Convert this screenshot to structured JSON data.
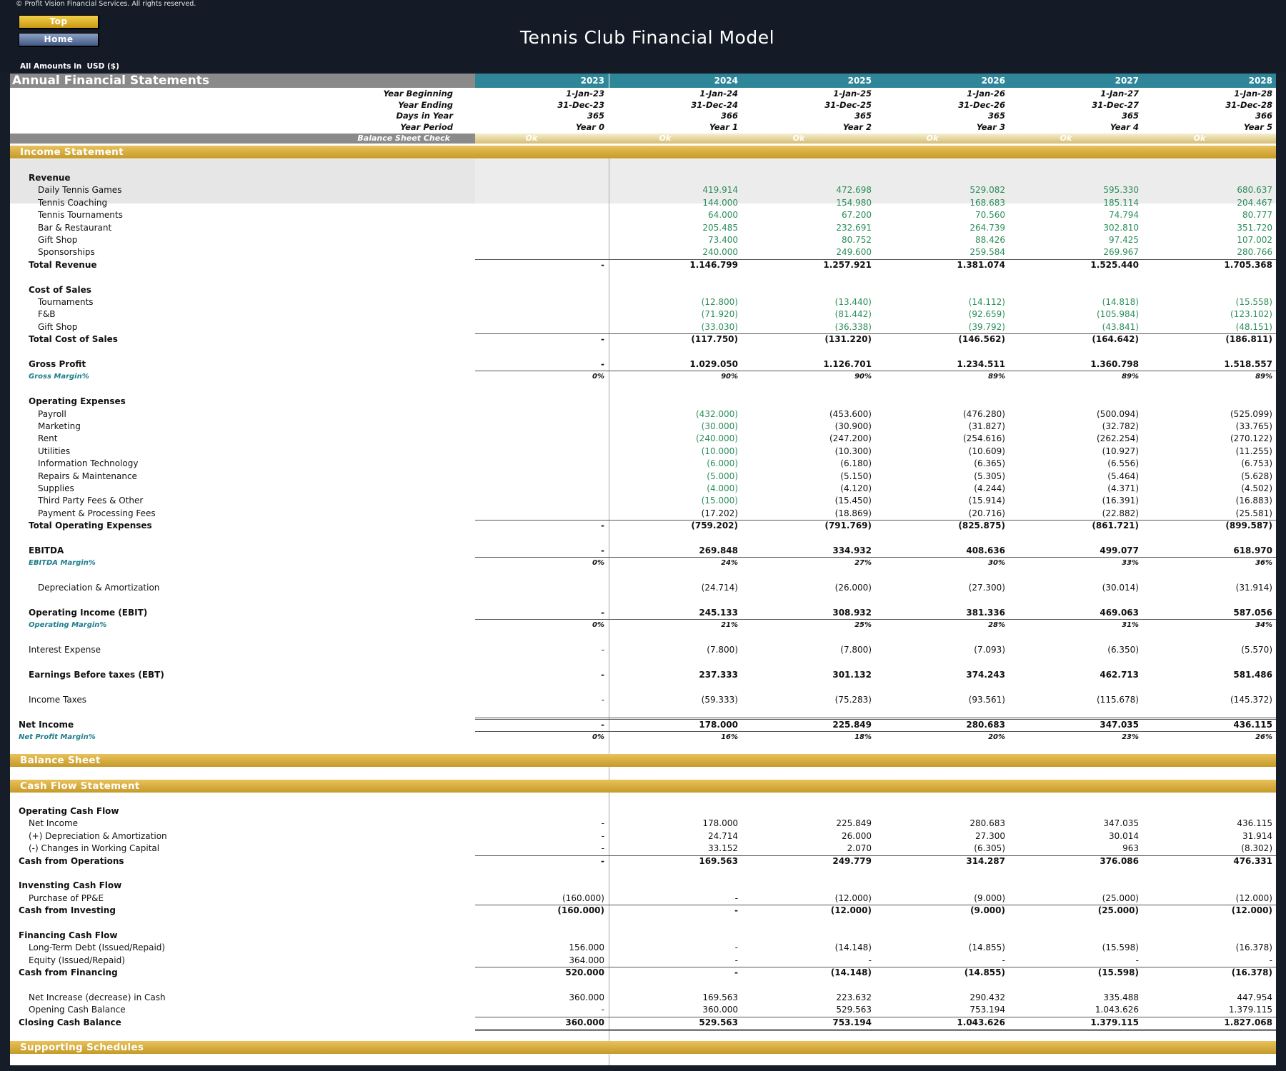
{
  "header": {
    "copyright": "© Profit Vision Financial Services. All rights reserved.",
    "top_button": "Top",
    "home_button": "Home",
    "title": "Tennis Club Financial Model",
    "amounts_prefix": "All Amounts in",
    "amounts_currency": "USD ($)"
  },
  "table_title": "Annual Financial Statements",
  "years": [
    "2023",
    "2024",
    "2025",
    "2026",
    "2027",
    "2028"
  ],
  "info_rows": [
    {
      "label": "Year Beginning",
      "values": [
        "1-Jan-23",
        "1-Jan-24",
        "1-Jan-25",
        "1-Jan-26",
        "1-Jan-27",
        "1-Jan-28"
      ]
    },
    {
      "label": "Year Ending",
      "values": [
        "31-Dec-23",
        "31-Dec-24",
        "31-Dec-25",
        "31-Dec-26",
        "31-Dec-27",
        "31-Dec-28"
      ]
    },
    {
      "label": "Days in Year",
      "values": [
        "365",
        "366",
        "365",
        "365",
        "365",
        "366"
      ]
    },
    {
      "label": "Year Period",
      "values": [
        "Year 0",
        "Year 1",
        "Year 2",
        "Year 3",
        "Year 4",
        "Year 5"
      ]
    }
  ],
  "balance_check": {
    "label": "Balance Sheet Check",
    "values": [
      "Ok",
      "Ok",
      "Ok",
      "Ok",
      "Ok",
      "Ok"
    ]
  },
  "sections": {
    "income": "Income Statement",
    "balance": "Balance Sheet",
    "cashflow": "Cash Flow Statement",
    "supporting": "Supporting Schedules"
  },
  "income_rows": [
    {
      "label": "Revenue",
      "indent": 1,
      "bold": true,
      "values": []
    },
    {
      "label": "Daily Tennis Games",
      "indent": 2,
      "green": true,
      "values": [
        "",
        "419.914",
        "472.698",
        "529.082",
        "595.330",
        "680.637"
      ]
    },
    {
      "label": "Tennis Coaching",
      "indent": 2,
      "green": true,
      "values": [
        "",
        "144.000",
        "154.980",
        "168.683",
        "185.114",
        "204.467"
      ]
    },
    {
      "label": "Tennis Tournaments",
      "indent": 2,
      "green": true,
      "values": [
        "",
        "64.000",
        "67.200",
        "70.560",
        "74.794",
        "80.777"
      ]
    },
    {
      "label": "Bar & Restaurant",
      "indent": 2,
      "green": true,
      "values": [
        "",
        "205.485",
        "232.691",
        "264.739",
        "302.810",
        "351.720"
      ]
    },
    {
      "label": "Gift Shop",
      "indent": 2,
      "green": true,
      "values": [
        "",
        "73.400",
        "80.752",
        "88.426",
        "97.425",
        "107.002"
      ]
    },
    {
      "label": "Sponsorships",
      "indent": 2,
      "green": true,
      "values": [
        "",
        "240.000",
        "249.600",
        "259.584",
        "269.967",
        "280.766"
      ]
    },
    {
      "label": "Total Revenue",
      "indent": 1,
      "bold": true,
      "topline": true,
      "values": [
        "-",
        "1.146.799",
        "1.257.921",
        "1.381.074",
        "1.525.440",
        "1.705.368"
      ]
    },
    {
      "label": "",
      "values": []
    },
    {
      "label": "Cost of Sales",
      "indent": 1,
      "bold": true,
      "values": []
    },
    {
      "label": "Tournaments",
      "indent": 2,
      "green": true,
      "values": [
        "",
        "(12.800)",
        "(13.440)",
        "(14.112)",
        "(14.818)",
        "(15.558)"
      ]
    },
    {
      "label": "F&B",
      "indent": 2,
      "green": true,
      "values": [
        "",
        "(71.920)",
        "(81.442)",
        "(92.659)",
        "(105.984)",
        "(123.102)"
      ]
    },
    {
      "label": "Gift Shop",
      "indent": 2,
      "green": true,
      "values": [
        "",
        "(33.030)",
        "(36.338)",
        "(39.792)",
        "(43.841)",
        "(48.151)"
      ]
    },
    {
      "label": "Total Cost of Sales",
      "indent": 1,
      "bold": true,
      "topline": true,
      "values": [
        "-",
        "(117.750)",
        "(131.220)",
        "(146.562)",
        "(164.642)",
        "(186.811)"
      ]
    },
    {
      "label": "",
      "values": []
    },
    {
      "label": "Gross Profit",
      "indent": 1,
      "bold": true,
      "values": [
        "-",
        "1.029.050",
        "1.126.701",
        "1.234.511",
        "1.360.798",
        "1.518.557"
      ]
    },
    {
      "label": "Gross Margin%",
      "indent": 1,
      "pct": true,
      "topline": true,
      "values": [
        "0%",
        "90%",
        "90%",
        "89%",
        "89%",
        "89%"
      ]
    },
    {
      "label": "",
      "values": []
    },
    {
      "label": "Operating Expenses",
      "indent": 1,
      "bold": true,
      "values": []
    },
    {
      "label": "Payroll",
      "indent": 2,
      "mixed": true,
      "values": [
        "",
        "(432.000)",
        "(453.600)",
        "(476.280)",
        "(500.094)",
        "(525.099)"
      ]
    },
    {
      "label": "Marketing",
      "indent": 2,
      "mixed": true,
      "values": [
        "",
        "(30.000)",
        "(30.900)",
        "(31.827)",
        "(32.782)",
        "(33.765)"
      ]
    },
    {
      "label": "Rent",
      "indent": 2,
      "mixed": true,
      "values": [
        "",
        "(240.000)",
        "(247.200)",
        "(254.616)",
        "(262.254)",
        "(270.122)"
      ]
    },
    {
      "label": "Utilities",
      "indent": 2,
      "mixed": true,
      "values": [
        "",
        "(10.000)",
        "(10.300)",
        "(10.609)",
        "(10.927)",
        "(11.255)"
      ]
    },
    {
      "label": "Information Technology",
      "indent": 2,
      "mixed": true,
      "values": [
        "",
        "(6.000)",
        "(6.180)",
        "(6.365)",
        "(6.556)",
        "(6.753)"
      ]
    },
    {
      "label": "Repairs & Maintenance",
      "indent": 2,
      "mixed": true,
      "values": [
        "",
        "(5.000)",
        "(5.150)",
        "(5.305)",
        "(5.464)",
        "(5.628)"
      ]
    },
    {
      "label": "Supplies",
      "indent": 2,
      "mixed": true,
      "values": [
        "",
        "(4.000)",
        "(4.120)",
        "(4.244)",
        "(4.371)",
        "(4.502)"
      ]
    },
    {
      "label": "Third Party Fees & Other",
      "indent": 2,
      "mixed": true,
      "values": [
        "",
        "(15.000)",
        "(15.450)",
        "(15.914)",
        "(16.391)",
        "(16.883)"
      ]
    },
    {
      "label": "Payment & Processing Fees",
      "indent": 2,
      "values": [
        "",
        "(17.202)",
        "(18.869)",
        "(20.716)",
        "(22.882)",
        "(25.581)"
      ]
    },
    {
      "label": "Total Operating Expenses",
      "indent": 1,
      "bold": true,
      "topline": true,
      "values": [
        "-",
        "(759.202)",
        "(791.769)",
        "(825.875)",
        "(861.721)",
        "(899.587)"
      ]
    },
    {
      "label": "",
      "values": []
    },
    {
      "label": "EBITDA",
      "indent": 1,
      "bold": true,
      "values": [
        "-",
        "269.848",
        "334.932",
        "408.636",
        "499.077",
        "618.970"
      ]
    },
    {
      "label": "EBITDA Margin%",
      "indent": 1,
      "pct": true,
      "topline": true,
      "values": [
        "0%",
        "24%",
        "27%",
        "30%",
        "33%",
        "36%"
      ]
    },
    {
      "label": "",
      "values": []
    },
    {
      "label": "Depreciation & Amortization",
      "indent": 2,
      "values": [
        "",
        "(24.714)",
        "(26.000)",
        "(27.300)",
        "(30.014)",
        "(31.914)"
      ]
    },
    {
      "label": "",
      "values": []
    },
    {
      "label": "Operating Income (EBIT)",
      "indent": 1,
      "bold": true,
      "values": [
        "-",
        "245.133",
        "308.932",
        "381.336",
        "469.063",
        "587.056"
      ]
    },
    {
      "label": "Operating Margin%",
      "indent": 1,
      "pct": true,
      "topline": true,
      "values": [
        "0%",
        "21%",
        "25%",
        "28%",
        "31%",
        "34%"
      ]
    },
    {
      "label": "",
      "values": []
    },
    {
      "label": "Interest Expense",
      "indent": 1,
      "values": [
        "-",
        "(7.800)",
        "(7.800)",
        "(7.093)",
        "(6.350)",
        "(5.570)"
      ]
    },
    {
      "label": "",
      "values": []
    },
    {
      "label": "Earnings Before taxes (EBT)",
      "indent": 1,
      "bold": true,
      "values": [
        "-",
        "237.333",
        "301.132",
        "374.243",
        "462.713",
        "581.486"
      ]
    },
    {
      "label": "",
      "values": []
    },
    {
      "label": "Income Taxes",
      "indent": 1,
      "values": [
        "-",
        "(59.333)",
        "(75.283)",
        "(93.561)",
        "(115.678)",
        "(145.372)"
      ]
    },
    {
      "label": "",
      "values": []
    },
    {
      "label": "Net Income",
      "indent": 0,
      "bold": true,
      "dbltop": true,
      "values": [
        "-",
        "178.000",
        "225.849",
        "280.683",
        "347.035",
        "436.115"
      ]
    },
    {
      "label": "Net Profit Margin%",
      "indent": 0,
      "pct": true,
      "topline": true,
      "values": [
        "0%",
        "16%",
        "18%",
        "20%",
        "23%",
        "26%"
      ]
    }
  ],
  "cash_rows": [
    {
      "label": "Operating Cash Flow",
      "indent": 0,
      "bold": true,
      "values": []
    },
    {
      "label": "Net Income",
      "indent": 1,
      "values": [
        "-",
        "178.000",
        "225.849",
        "280.683",
        "347.035",
        "436.115"
      ]
    },
    {
      "label": "(+) Depreciation & Amortization",
      "indent": 1,
      "values": [
        "-",
        "24.714",
        "26.000",
        "27.300",
        "30.014",
        "31.914"
      ]
    },
    {
      "label": "(-) Changes in Working Capital",
      "indent": 1,
      "values": [
        "-",
        "33.152",
        "2.070",
        "(6.305)",
        "963",
        "(8.302)"
      ]
    },
    {
      "label": "Cash from Operations",
      "indent": 0,
      "bold": true,
      "topline": true,
      "values": [
        "-",
        "169.563",
        "249.779",
        "314.287",
        "376.086",
        "476.331"
      ]
    },
    {
      "label": "",
      "values": []
    },
    {
      "label": "Invensting Cash Flow",
      "indent": 0,
      "bold": true,
      "values": []
    },
    {
      "label": "Purchase of PP&E",
      "indent": 1,
      "values": [
        "(160.000)",
        "-",
        "(12.000)",
        "(9.000)",
        "(25.000)",
        "(12.000)"
      ]
    },
    {
      "label": "Cash from Investing",
      "indent": 0,
      "bold": true,
      "topline": true,
      "values": [
        "(160.000)",
        "-",
        "(12.000)",
        "(9.000)",
        "(25.000)",
        "(12.000)"
      ]
    },
    {
      "label": "",
      "values": []
    },
    {
      "label": "Financing Cash Flow",
      "indent": 0,
      "bold": true,
      "values": []
    },
    {
      "label": "Long-Term Debt (Issued/Repaid)",
      "indent": 1,
      "values": [
        "156.000",
        "-",
        "(14.148)",
        "(14.855)",
        "(15.598)",
        "(16.378)"
      ]
    },
    {
      "label": "Equity (Issued/Repaid)",
      "indent": 1,
      "values": [
        "364.000",
        "-",
        "-",
        "-",
        "-",
        "-"
      ]
    },
    {
      "label": "Cash from Financing",
      "indent": 0,
      "bold": true,
      "topline": true,
      "values": [
        "520.000",
        "-",
        "(14.148)",
        "(14.855)",
        "(15.598)",
        "(16.378)"
      ]
    },
    {
      "label": "",
      "values": []
    },
    {
      "label": "Net Increase (decrease) in Cash",
      "indent": 1,
      "values": [
        "360.000",
        "169.563",
        "223.632",
        "290.432",
        "335.488",
        "447.954"
      ]
    },
    {
      "label": "Opening Cash Balance",
      "indent": 1,
      "values": [
        "-",
        "360.000",
        "529.563",
        "753.194",
        "1.043.626",
        "1.379.115"
      ]
    },
    {
      "label": "Closing Cash Balance",
      "indent": 0,
      "bold": true,
      "topline": true,
      "dblbottom": true,
      "values": [
        "360.000",
        "529.563",
        "753.194",
        "1.043.626",
        "1.379.115",
        "1.827.068"
      ]
    }
  ]
}
